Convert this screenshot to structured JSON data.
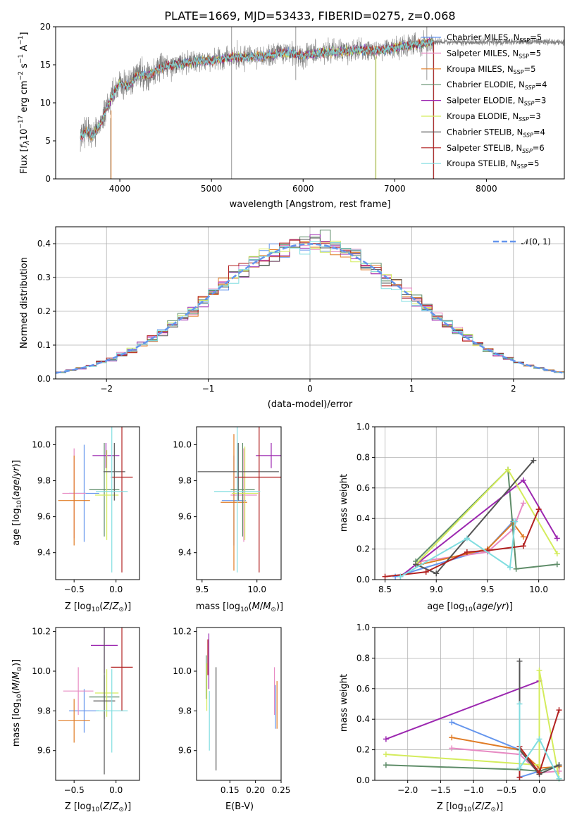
{
  "colors": {
    "chabrier_miles": "#6495ed",
    "salpeter_miles": "#e78ac3",
    "kroupa_miles": "#e07b24",
    "chabrier_elodie": "#5e8c68",
    "salpeter_elodie": "#9c27b0",
    "kroupa_elodie": "#d4ec5c",
    "chabrier_stelib": "#555555",
    "salpeter_stelib": "#b22222",
    "kroupa_stelib": "#80dde0",
    "data_gray": "#7f7f7f",
    "normal_curve": "#6495ed"
  },
  "chart_data": [
    {
      "type": "line",
      "title": "PLATE=1669, MJD=53433, FIBERID=0275, z=0.068",
      "xlabel": "wavelength [Angstrom, rest frame]",
      "ylabel": "Flux [fλ10⁻¹⁷ erg cm⁻² s⁻¹ A⁻¹]",
      "xlim": [
        3300,
        8850
      ],
      "ylim": [
        0,
        20
      ],
      "xticks": [
        "4000",
        "5000",
        "6000",
        "7000",
        "8000"
      ],
      "yticks": [
        "0",
        "5",
        "10",
        "15",
        "20"
      ],
      "grid": false,
      "legend_position": "right",
      "spectrum_continuum": {
        "wavelength": [
          3570,
          3650,
          3700,
          3800,
          3900,
          4000,
          4100,
          4200,
          4300,
          4400,
          4500,
          4700,
          4900,
          5000,
          5200,
          5400,
          5600,
          5800,
          6000,
          6200,
          6400,
          6600,
          6800,
          7000,
          7200,
          7400
        ],
        "flux": [
          5.5,
          6.3,
          5.5,
          7.5,
          10.5,
          12.5,
          12.2,
          13.8,
          13.5,
          14.3,
          14.8,
          15.2,
          15.6,
          15.5,
          16.0,
          16.0,
          16.2,
          16.6,
          16.2,
          16.6,
          16.7,
          17.0,
          16.8,
          17.3,
          17.6,
          18.0
        ]
      },
      "series": [
        {
          "name": "Chabrier MILES, N_SSP=5"
        },
        {
          "name": "Salpeter MILES, N_SSP=5"
        },
        {
          "name": "Kroupa MILES, N_SSP=5"
        },
        {
          "name": "Chabrier ELODIE, N_SSP=4"
        },
        {
          "name": "Salpeter ELODIE, N_SSP=3"
        },
        {
          "name": "Kroupa ELODIE, N_SSP=3"
        },
        {
          "name": "Chabrier STELIB, N_SSP=4"
        },
        {
          "name": "Salpeter STELIB, N_SSP=6"
        },
        {
          "name": "Kroupa STELIB, N_SSP=5"
        }
      ]
    },
    {
      "type": "bar",
      "xlabel": "(data-model)/error",
      "ylabel": "Normed distribution",
      "xlim": [
        -2.5,
        2.5
      ],
      "ylim": [
        0,
        0.45
      ],
      "xticks": [
        "−2",
        "−1",
        "0",
        "1",
        "2"
      ],
      "yticks": [
        "0.0",
        "0.1",
        "0.2",
        "0.3",
        "0.4"
      ],
      "grid": true,
      "legend": [
        {
          "name": "𝒩(0, 1)"
        }
      ],
      "legend_position": "top-right",
      "bin_width": 0.1
    },
    {
      "type": "scatter",
      "xlabel": "Z [log10(Z/Z⊙)]",
      "ylabel": "age  [log10(age/yr)]",
      "xlim": [
        -0.72,
        0.28
      ],
      "ylim": [
        9.25,
        10.1
      ],
      "xticks": [
        "−0.5",
        "0.0"
      ],
      "yticks": [
        "9.4",
        "9.6",
        "9.8",
        "10.0"
      ],
      "points": [
        {
          "x": -0.38,
          "y": 9.73,
          "xerr": 0.18,
          "yerr": 0.27
        },
        {
          "x": -0.5,
          "y": 9.73,
          "xerr": 0.14,
          "yerr": 0.25
        },
        {
          "x": -0.5,
          "y": 9.69,
          "xerr": 0.19,
          "yerr": 0.25
        },
        {
          "x": -0.14,
          "y": 9.75,
          "xerr": 0.18,
          "yerr": 0.26
        },
        {
          "x": -0.12,
          "y": 9.94,
          "xerr": 0.16,
          "yerr": 0.07
        },
        {
          "x": -0.11,
          "y": 9.72,
          "xerr": 0.14,
          "yerr": 0.25
        },
        {
          "x": -0.02,
          "y": 9.85,
          "xerr": 0.13,
          "yerr": 0.16
        },
        {
          "x": 0.07,
          "y": 9.82,
          "xerr": 0.13,
          "yerr": 0.53
        },
        {
          "x": -0.05,
          "y": 9.74,
          "xerr": 0.19,
          "yerr": 0.45
        }
      ]
    },
    {
      "type": "scatter",
      "xlabel": "mass [log10(M/M⊙)]",
      "xlim": [
        9.45,
        10.22
      ],
      "ylim": [
        9.25,
        10.1
      ],
      "xticks": [
        "9.5",
        "10.0"
      ],
      "yticks": [
        "9.4",
        "9.6",
        "9.8",
        "10.0"
      ],
      "points": [
        {
          "x": 9.79,
          "y": 9.69,
          "xerr": 0.11,
          "yerr": 0.25
        },
        {
          "x": 9.88,
          "y": 9.72,
          "xerr": 0.12,
          "yerr": 0.26
        },
        {
          "x": 9.79,
          "y": 9.68,
          "xerr": 0.12,
          "yerr": 0.38
        },
        {
          "x": 9.87,
          "y": 9.75,
          "xerr": 0.11,
          "yerr": 0.26
        },
        {
          "x": 10.13,
          "y": 9.94,
          "xerr": 0.14,
          "yerr": 0.07
        },
        {
          "x": 9.89,
          "y": 9.73,
          "xerr": 0.12,
          "yerr": 0.26
        },
        {
          "x": 9.83,
          "y": 9.85,
          "xerr": 0.37,
          "yerr": 0.16
        },
        {
          "x": 10.02,
          "y": 9.82,
          "xerr": 0.22,
          "yerr": 0.53
        },
        {
          "x": 9.82,
          "y": 9.74,
          "xerr": 0.21,
          "yerr": 0.45
        }
      ]
    },
    {
      "type": "line",
      "xlabel": "age  [log10(age/yr)]",
      "ylabel": "mass weight",
      "xlim": [
        8.4,
        10.25
      ],
      "ylim": [
        0,
        1
      ],
      "xticks": [
        "8.5",
        "9.0",
        "9.5",
        "10.0"
      ],
      "yticks": [
        "0.0",
        "0.2",
        "0.4",
        "0.6",
        "0.8",
        "1.0"
      ],
      "grid": true,
      "series": [
        {
          "color_key": "chabrier_miles",
          "x": [
            8.6,
            9.5,
            9.75
          ],
          "y": [
            0.02,
            0.2,
            0.38
          ]
        },
        {
          "color_key": "salpeter_miles",
          "x": [
            8.85,
            9.5,
            9.75,
            9.85
          ],
          "y": [
            0.12,
            0.18,
            0.33,
            0.5
          ]
        },
        {
          "color_key": "kroupa_miles",
          "x": [
            8.85,
            9.5,
            9.75,
            9.85
          ],
          "y": [
            0.1,
            0.2,
            0.37,
            0.28
          ]
        },
        {
          "color_key": "chabrier_elodie",
          "x": [
            8.8,
            9.7,
            9.78,
            10.18
          ],
          "y": [
            0.12,
            0.72,
            0.07,
            0.1
          ]
        },
        {
          "color_key": "salpeter_elodie",
          "x": [
            8.65,
            9.85,
            10.18
          ],
          "y": [
            0.02,
            0.65,
            0.27
          ]
        },
        {
          "color_key": "kroupa_elodie",
          "x": [
            8.8,
            9.7,
            10.18
          ],
          "y": [
            0.1,
            0.72,
            0.17
          ]
        },
        {
          "color_key": "chabrier_stelib",
          "x": [
            8.8,
            9.0,
            9.95
          ],
          "y": [
            0.1,
            0.04,
            0.78
          ]
        },
        {
          "color_key": "salpeter_stelib",
          "x": [
            8.5,
            8.9,
            9.3,
            9.5,
            9.85,
            10.0
          ],
          "y": [
            0.02,
            0.05,
            0.18,
            0.19,
            0.22,
            0.46
          ]
        },
        {
          "color_key": "kroupa_stelib",
          "x": [
            8.65,
            9.3,
            9.72,
            9.77
          ],
          "y": [
            0.02,
            0.27,
            0.08,
            0.38
          ]
        }
      ]
    },
    {
      "type": "scatter",
      "xlabel": "Z [log10(Z/Z⊙)]",
      "ylabel": "mass [log10(M/M⊙)]",
      "xlim": [
        -0.72,
        0.28
      ],
      "ylim": [
        9.45,
        10.22
      ],
      "xticks": [
        "−0.5",
        "0.0"
      ],
      "yticks": [
        "9.6",
        "9.8",
        "10.0",
        "10.2"
      ],
      "points": [
        {
          "x": -0.38,
          "y": 9.8,
          "xerr": 0.18,
          "yerr": 0.11
        },
        {
          "x": -0.45,
          "y": 9.9,
          "xerr": 0.18,
          "yerr": 0.12
        },
        {
          "x": -0.5,
          "y": 9.75,
          "xerr": 0.19,
          "yerr": 0.11
        },
        {
          "x": -0.14,
          "y": 9.87,
          "xerr": 0.18,
          "yerr": 0.11
        },
        {
          "x": -0.14,
          "y": 10.13,
          "xerr": 0.16,
          "yerr": 0.14
        },
        {
          "x": -0.11,
          "y": 9.89,
          "xerr": 0.14,
          "yerr": 0.12
        },
        {
          "x": -0.14,
          "y": 9.85,
          "xerr": 0.13,
          "yerr": 0.37
        },
        {
          "x": 0.07,
          "y": 10.02,
          "xerr": 0.13,
          "yerr": 0.22
        },
        {
          "x": -0.05,
          "y": 9.8,
          "xerr": 0.19,
          "yerr": 0.21
        }
      ]
    },
    {
      "type": "scatter",
      "xlabel": "E(B-V)",
      "xlim": [
        0.085,
        0.25
      ],
      "ylim": [
        9.45,
        10.22
      ],
      "xticks": [
        "0.15",
        "0.20",
        "0.25"
      ],
      "yticks": [
        "9.6",
        "9.8",
        "10.0",
        "10.2"
      ],
      "points": [
        {
          "x": 0.239,
          "y": 9.82,
          "yerr": 0.11
        },
        {
          "x": 0.237,
          "y": 9.9,
          "yerr": 0.12
        },
        {
          "x": 0.242,
          "y": 9.83,
          "yerr": 0.12
        },
        {
          "x": 0.104,
          "y": 9.97,
          "yerr": 0.11
        },
        {
          "x": 0.109,
          "y": 10.05,
          "yerr": 0.14
        },
        {
          "x": 0.105,
          "y": 9.92,
          "yerr": 0.12
        },
        {
          "x": 0.123,
          "y": 9.76,
          "yerr": 0.26
        },
        {
          "x": 0.107,
          "y": 10.07,
          "yerr": 0.09
        },
        {
          "x": 0.11,
          "y": 9.75,
          "yerr": 0.15
        }
      ]
    },
    {
      "type": "line",
      "xlabel": "Z [log10(Z/Z⊙)]",
      "ylabel": "mass weight",
      "xlim": [
        -2.5,
        0.38
      ],
      "ylim": [
        0,
        1
      ],
      "xticks": [
        "−2.0",
        "−1.5",
        "−1.0",
        "−0.5",
        "0.0"
      ],
      "yticks": [
        "0.0",
        "0.2",
        "0.4",
        "0.6",
        "0.8",
        "1.0"
      ],
      "grid": true,
      "series": [
        {
          "color_key": "chabrier_miles",
          "x": [
            -1.33,
            -0.3,
            -0.3,
            0.0
          ],
          "y": [
            0.38,
            0.2,
            0.02,
            0.06
          ]
        },
        {
          "color_key": "salpeter_miles",
          "x": [
            -1.33,
            -0.3,
            0.0,
            0.3
          ],
          "y": [
            0.21,
            0.17,
            0.05,
            0.06
          ]
        },
        {
          "color_key": "kroupa_miles",
          "x": [
            -1.33,
            -0.3,
            0.0,
            0.3
          ],
          "y": [
            0.28,
            0.2,
            0.08,
            0.09
          ]
        },
        {
          "color_key": "chabrier_elodie",
          "x": [
            -2.33,
            -0.3,
            0.0,
            0.3
          ],
          "y": [
            0.1,
            0.07,
            0.06,
            0.1
          ]
        },
        {
          "color_key": "salpeter_elodie",
          "x": [
            -2.33,
            0.0
          ],
          "y": [
            0.27,
            0.65
          ]
        },
        {
          "color_key": "kroupa_elodie",
          "x": [
            -2.33,
            0.0,
            0.0,
            0.3
          ],
          "y": [
            0.17,
            0.1,
            0.72,
            0.01
          ]
        },
        {
          "color_key": "chabrier_stelib",
          "x": [
            -0.3,
            -0.3,
            0.0,
            0.3
          ],
          "y": [
            0.78,
            0.2,
            0.04,
            0.1
          ]
        },
        {
          "color_key": "salpeter_stelib",
          "x": [
            -0.3,
            -0.3,
            0.0,
            0.3
          ],
          "y": [
            0.02,
            0.22,
            0.05,
            0.46
          ]
        },
        {
          "color_key": "kroupa_stelib",
          "x": [
            -0.3,
            -0.3,
            0.0,
            0.3
          ],
          "y": [
            0.5,
            0.08,
            0.27,
            0.01
          ]
        }
      ]
    }
  ]
}
